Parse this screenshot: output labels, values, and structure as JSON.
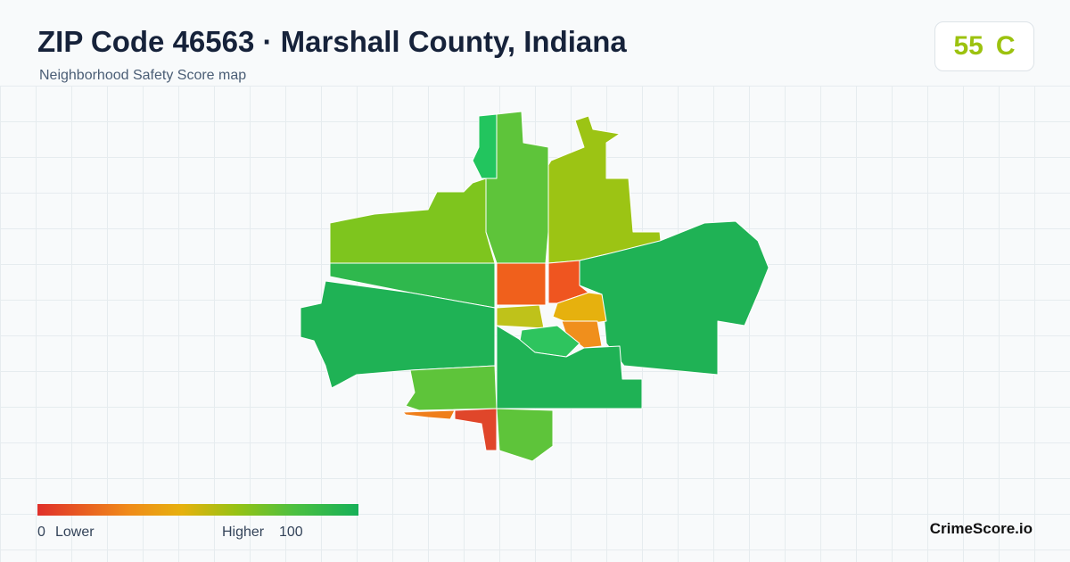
{
  "header": {
    "title": "ZIP Code 46563 · Marshall County, Indiana",
    "subtitle": "Neighborhood Safety Score map"
  },
  "score": {
    "value": 55,
    "grade": "C"
  },
  "legend": {
    "min": 0,
    "min_label": "Lower",
    "max_label": "Higher",
    "max": 100
  },
  "brand": "CrimeScore.io"
}
